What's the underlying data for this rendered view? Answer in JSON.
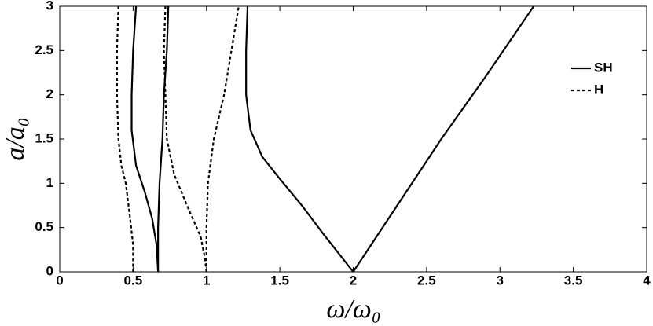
{
  "chart_data": {
    "type": "line",
    "xlabel": "ω/ω₀",
    "ylabel": "a/a₀",
    "xlim": [
      0,
      4
    ],
    "ylim": [
      0,
      3
    ],
    "xticks": [
      0,
      0.5,
      1,
      1.5,
      2,
      2.5,
      3,
      3.5,
      4
    ],
    "yticks": [
      0,
      0.5,
      1,
      1.5,
      2,
      2.5,
      3
    ],
    "legend": "upper right",
    "series": [
      {
        "name": "SH",
        "color": "#000000",
        "dash": "solid",
        "branches": [
          {
            "x": [
              0.52,
              0.5,
              0.49,
              0.49,
              0.52,
              0.58,
              0.63,
              0.66,
              0.67
            ],
            "y": [
              3,
              2.5,
              2,
              1.6,
              1.2,
              0.9,
              0.6,
              0.3,
              0
            ]
          },
          {
            "x": [
              0.67,
              0.67,
              0.68,
              0.7,
              0.71,
              0.73,
              0.74
            ],
            "y": [
              0,
              0.5,
              1,
              1.5,
              2,
              2.5,
              3
            ]
          },
          {
            "x": [
              1.28,
              1.27,
              1.27,
              1.3,
              1.38,
              1.5,
              1.65,
              1.8,
              2
            ],
            "y": [
              3,
              2.5,
              2,
              1.6,
              1.3,
              1.05,
              0.75,
              0.42,
              0
            ]
          },
          {
            "x": [
              2,
              2.3,
              2.6,
              2.9,
              3.23
            ],
            "y": [
              0,
              0.75,
              1.5,
              2.2,
              3
            ]
          }
        ]
      },
      {
        "name": "H",
        "color": "#000000",
        "dash": "dashed",
        "branches": [
          {
            "x": [
              0.4,
              0.39,
              0.39,
              0.4,
              0.42,
              0.45,
              0.48,
              0.5,
              0.5
            ],
            "y": [
              3,
              2.5,
              2,
              1.5,
              1.2,
              1,
              0.6,
              0.3,
              0
            ]
          },
          {
            "x": [
              0.72,
              0.71,
              0.72,
              0.73,
              0.78,
              0.88,
              0.96,
              0.99,
              1
            ],
            "y": [
              3,
              2.5,
              2,
              1.5,
              1.1,
              0.7,
              0.4,
              0.15,
              0
            ]
          },
          {
            "x": [
              1,
              1,
              1.01,
              1.05,
              1.12,
              1.17,
              1.22
            ],
            "y": [
              0,
              0.5,
              1,
              1.5,
              2,
              2.5,
              3
            ]
          }
        ]
      }
    ]
  }
}
